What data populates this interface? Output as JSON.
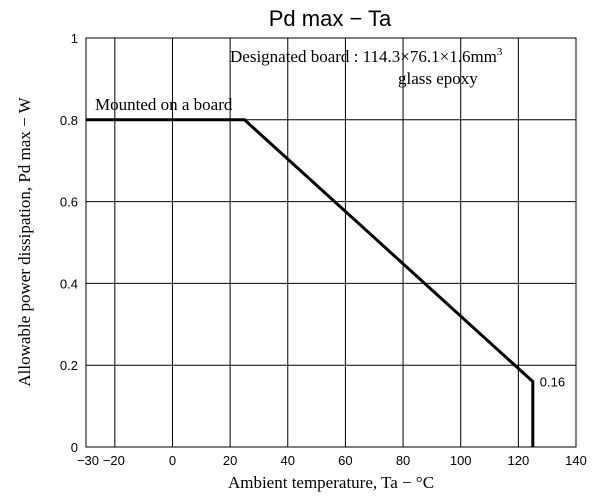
{
  "chart_data": {
    "type": "line",
    "title": "Pd max  −  Ta",
    "xlabel": "Ambient temperature,  Ta  −  °C",
    "ylabel": "Allowable power dissipation,  Pd max  −  W",
    "xlim": [
      -30,
      140
    ],
    "ylim": [
      0,
      1
    ],
    "x_ticks": [
      "−30",
      "−20",
      "0",
      "20",
      "40",
      "60",
      "80",
      "100",
      "120",
      "140"
    ],
    "y_ticks": [
      "0",
      "0.2",
      "0.4",
      "0.6",
      "0.8",
      "1"
    ],
    "grid": true,
    "series": [
      {
        "points": [
          {
            "x": -30,
            "y": 0.8
          },
          {
            "x": 25,
            "y": 0.8
          },
          {
            "x": 125,
            "y": 0.16
          },
          {
            "x": 125,
            "y": 0
          }
        ]
      }
    ],
    "annotations": {
      "board_prefix": "Designated board : 114.3×76.1×1.6mm",
      "board_superscript": "3",
      "board_material": "glass epoxy",
      "series_label": "Mounted on a board",
      "end_value": "0.16"
    }
  }
}
